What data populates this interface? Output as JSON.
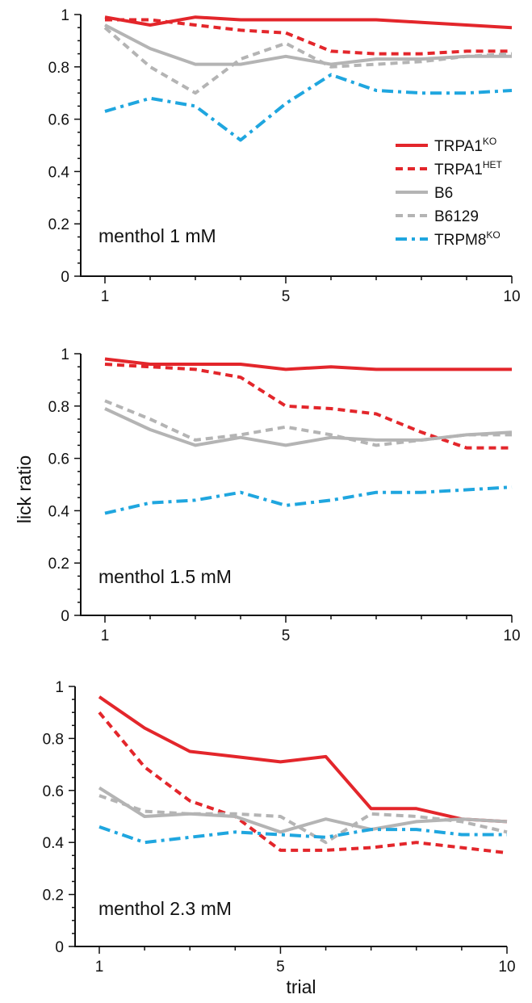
{
  "figure": {
    "ylabel": "lick ratio",
    "xlabel": "trial",
    "legend": {
      "placement": "top panel, right",
      "entries": [
        {
          "base": "TRPA1",
          "sup": "KO",
          "series": "TRPA1KO"
        },
        {
          "base": "TRPA1",
          "sup": "HET",
          "series": "TRPA1HET"
        },
        {
          "base": "B6",
          "sup": "",
          "series": "B6"
        },
        {
          "base": "B6129",
          "sup": "",
          "series": "B6129"
        },
        {
          "base": "TRPM8",
          "sup": "KO",
          "series": "TRPM8KO"
        }
      ]
    },
    "series_style": {
      "TRPA1KO": {
        "color": "#e3262b",
        "dash": "solid"
      },
      "TRPA1HET": {
        "color": "#e3262b",
        "dash": "dashed"
      },
      "B6": {
        "color": "#b4b4b4",
        "dash": "solid"
      },
      "B6129": {
        "color": "#b4b4b4",
        "dash": "dashed"
      },
      "TRPM8KO": {
        "color": "#1fa6df",
        "dash": "dashdot"
      }
    }
  },
  "chart_data": [
    {
      "type": "line",
      "panel_label": "menthol 1 mM",
      "xlabel": "",
      "ylabel": "",
      "x": [
        1,
        2,
        3,
        4,
        5,
        6,
        7,
        8,
        9,
        10
      ],
      "xticks": [
        1,
        5,
        10
      ],
      "ylim": [
        0,
        1
      ],
      "yticks": [
        0,
        0.2,
        0.4,
        0.6,
        0.8,
        1
      ],
      "ytick_labels": [
        "0",
        "0.2",
        "0.4",
        "0.6",
        "0.8",
        "1"
      ],
      "grid": false,
      "series": [
        {
          "key": "TRPA1KO",
          "values": [
            0.99,
            0.96,
            0.99,
            0.98,
            0.98,
            0.98,
            0.98,
            0.97,
            0.96,
            0.95
          ]
        },
        {
          "key": "TRPA1HET",
          "values": [
            0.98,
            0.98,
            0.96,
            0.94,
            0.93,
            0.86,
            0.85,
            0.85,
            0.86,
            0.86
          ]
        },
        {
          "key": "B6",
          "values": [
            0.96,
            0.87,
            0.81,
            0.81,
            0.84,
            0.81,
            0.83,
            0.83,
            0.84,
            0.84
          ]
        },
        {
          "key": "B6129",
          "values": [
            0.95,
            0.8,
            0.7,
            0.83,
            0.89,
            0.8,
            0.81,
            0.82,
            0.84,
            0.85
          ]
        },
        {
          "key": "TRPM8KO",
          "values": [
            0.63,
            0.68,
            0.65,
            0.52,
            0.66,
            0.77,
            0.71,
            0.7,
            0.7,
            0.71
          ]
        }
      ]
    },
    {
      "type": "line",
      "panel_label": "menthol 1.5 mM",
      "xlabel": "",
      "ylabel": "lick ratio",
      "x": [
        1,
        2,
        3,
        4,
        5,
        6,
        7,
        8,
        9,
        10
      ],
      "xticks": [
        1,
        5,
        10
      ],
      "ylim": [
        0,
        1
      ],
      "yticks": [
        0,
        0.2,
        0.4,
        0.6,
        0.8,
        1
      ],
      "ytick_labels": [
        "0",
        "0.2",
        "0.4",
        "0.6",
        "0.8",
        "1"
      ],
      "grid": false,
      "series": [
        {
          "key": "TRPA1KO",
          "values": [
            0.98,
            0.96,
            0.96,
            0.96,
            0.94,
            0.95,
            0.94,
            0.94,
            0.94,
            0.94
          ]
        },
        {
          "key": "TRPA1HET",
          "values": [
            0.96,
            0.95,
            0.94,
            0.91,
            0.8,
            0.79,
            0.77,
            0.7,
            0.64,
            0.64
          ]
        },
        {
          "key": "B6",
          "values": [
            0.79,
            0.71,
            0.65,
            0.68,
            0.65,
            0.68,
            0.67,
            0.67,
            0.69,
            0.7
          ]
        },
        {
          "key": "B6129",
          "values": [
            0.82,
            0.75,
            0.67,
            0.69,
            0.72,
            0.69,
            0.65,
            0.67,
            0.69,
            0.69
          ]
        },
        {
          "key": "TRPM8KO",
          "values": [
            0.39,
            0.43,
            0.44,
            0.47,
            0.42,
            0.44,
            0.47,
            0.47,
            0.48,
            0.49
          ]
        }
      ]
    },
    {
      "type": "line",
      "panel_label": "menthol 2.3 mM",
      "xlabel": "trial",
      "ylabel": "",
      "x": [
        1,
        2,
        3,
        4,
        5,
        6,
        7,
        8,
        9,
        10
      ],
      "xticks": [
        1,
        5,
        10
      ],
      "ylim": [
        0,
        1
      ],
      "yticks": [
        0,
        0.2,
        0.4,
        0.6,
        0.8,
        1
      ],
      "ytick_labels": [
        "0",
        "0.2",
        "0.4",
        "0.6",
        "0.8",
        "1"
      ],
      "grid": false,
      "series": [
        {
          "key": "TRPA1KO",
          "values": [
            0.96,
            0.84,
            0.75,
            0.73,
            0.71,
            0.73,
            0.53,
            0.53,
            0.49,
            0.48
          ]
        },
        {
          "key": "TRPA1HET",
          "values": [
            0.9,
            0.69,
            0.56,
            0.5,
            0.37,
            0.37,
            0.38,
            0.4,
            0.38,
            0.36
          ]
        },
        {
          "key": "B6",
          "values": [
            0.61,
            0.5,
            0.51,
            0.5,
            0.44,
            0.49,
            0.45,
            0.48,
            0.49,
            0.48
          ]
        },
        {
          "key": "B6129",
          "values": [
            0.58,
            0.52,
            0.51,
            0.51,
            0.5,
            0.4,
            0.51,
            0.5,
            0.48,
            0.44
          ]
        },
        {
          "key": "TRPM8KO",
          "values": [
            0.46,
            0.4,
            0.42,
            0.44,
            0.43,
            0.42,
            0.45,
            0.45,
            0.43,
            0.43
          ]
        }
      ]
    }
  ]
}
